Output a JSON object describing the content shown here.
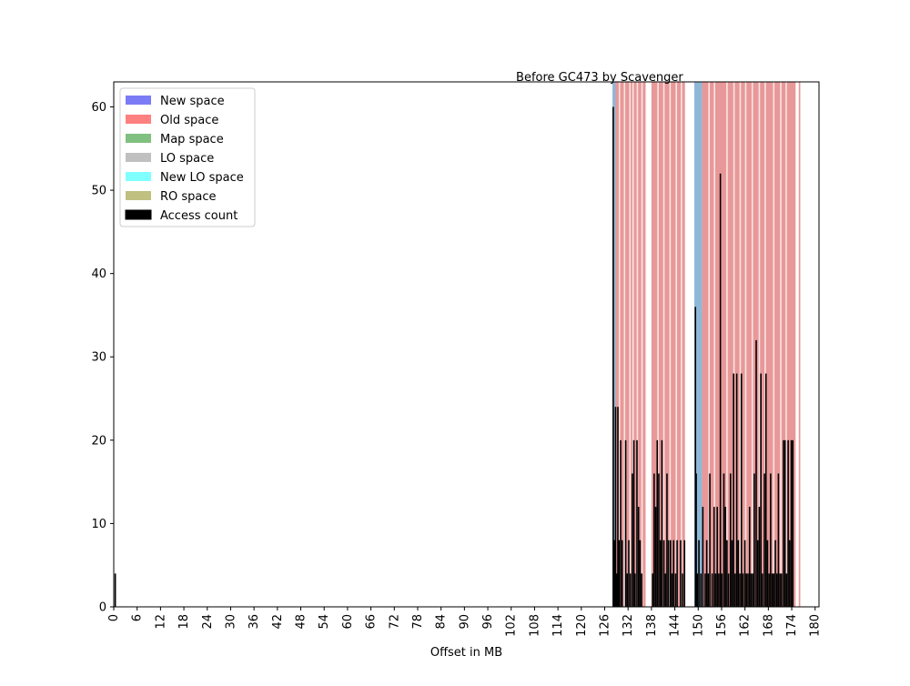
{
  "chart_data": {
    "type": "bar",
    "title": "Before GC473 by Scavenger",
    "xlabel": "Offset in MB",
    "ylabel": "",
    "xlim": [
      0,
      181
    ],
    "ylim": [
      0,
      63
    ],
    "xticks": [
      0,
      6,
      12,
      18,
      24,
      30,
      36,
      42,
      48,
      54,
      60,
      66,
      72,
      78,
      84,
      90,
      96,
      102,
      108,
      114,
      120,
      126,
      132,
      138,
      144,
      150,
      156,
      162,
      168,
      174,
      180
    ],
    "yticks": [
      0,
      10,
      20,
      30,
      40,
      50,
      60
    ],
    "grid": false,
    "legend_position": "top-left",
    "legend": [
      {
        "label": "New space",
        "color": "#7b7bf5"
      },
      {
        "label": "Old space",
        "color": "#ff8080"
      },
      {
        "label": "Map space",
        "color": "#80c080"
      },
      {
        "label": "LO space",
        "color": "#c0c0c0"
      },
      {
        "label": "New LO space",
        "color": "#80ffff"
      },
      {
        "label": "RO space",
        "color": "#c0c080"
      },
      {
        "label": "Access count",
        "color": "#000000"
      }
    ],
    "space_regions": [
      {
        "space": "New space",
        "start": 128.0,
        "end": 128.8,
        "color": "#8fb8d8"
      },
      {
        "space": "Old space",
        "start": 128.8,
        "end": 136.5,
        "color": "#e89898"
      },
      {
        "space": "Old space",
        "start": 138.0,
        "end": 146.6,
        "color": "#e89898"
      },
      {
        "space": "New space",
        "start": 149.0,
        "end": 151.0,
        "color": "#8fb8d8"
      },
      {
        "space": "Old space",
        "start": 151.0,
        "end": 175.0,
        "color": "#e89898"
      },
      {
        "space": "Old space",
        "start": 175.8,
        "end": 176.2,
        "color": "#e89898"
      }
    ],
    "region_gaps": [
      129.6,
      130.9,
      132.3,
      133.1,
      134.2,
      135.4,
      139.5,
      141.0,
      142.6,
      144.2,
      145.5,
      152.6,
      154.0,
      157.2,
      159.0,
      160.6,
      162.0,
      163.7,
      165.5,
      167.0,
      169.2,
      171.0,
      172.4
    ],
    "series": [
      {
        "name": "Access count",
        "x": [
          0.2,
          128.0,
          128.3,
          128.6,
          128.9,
          129.2,
          129.5,
          129.9,
          130.3,
          131.2,
          131.6,
          132.0,
          132.4,
          132.9,
          133.3,
          133.6,
          134.1,
          134.5,
          134.9,
          135.3,
          138.1,
          138.5,
          138.9,
          139.3,
          139.7,
          140.1,
          140.5,
          141.0,
          141.4,
          141.8,
          142.2,
          142.7,
          143.1,
          143.5,
          144.0,
          144.4,
          145.3,
          145.8,
          146.3,
          149.1,
          149.3,
          149.6,
          150.0,
          150.5,
          151.0,
          151.6,
          152.0,
          152.4,
          152.8,
          153.4,
          153.9,
          154.3,
          154.7,
          155.1,
          155.5,
          155.9,
          156.4,
          156.8,
          157.2,
          157.6,
          158.1,
          158.5,
          158.9,
          159.3,
          159.7,
          160.1,
          160.5,
          160.9,
          161.3,
          161.8,
          162.2,
          162.6,
          163.0,
          163.4,
          163.8,
          164.2,
          164.7,
          165.1,
          165.5,
          165.9,
          166.3,
          166.8,
          167.2,
          167.6,
          168.0,
          168.4,
          168.8,
          169.2,
          169.6,
          170.0,
          170.4,
          170.8,
          171.2,
          171.7,
          172.1,
          172.5,
          172.9,
          173.3,
          173.7,
          174.1
        ],
        "values": [
          4,
          60,
          8,
          24,
          4,
          24,
          8,
          20,
          8,
          20,
          4,
          8,
          4,
          16,
          20,
          4,
          20,
          12,
          8,
          4,
          4,
          16,
          12,
          20,
          16,
          8,
          20,
          8,
          4,
          16,
          8,
          8,
          4,
          8,
          4,
          8,
          8,
          4,
          8,
          36,
          16,
          4,
          8,
          4,
          12,
          4,
          8,
          4,
          16,
          4,
          12,
          4,
          12,
          4,
          52,
          4,
          16,
          12,
          8,
          4,
          16,
          8,
          28,
          4,
          28,
          8,
          4,
          28,
          4,
          8,
          4,
          4,
          12,
          4,
          4,
          16,
          32,
          8,
          12,
          28,
          4,
          16,
          28,
          8,
          4,
          16,
          4,
          4,
          8,
          4,
          16,
          4,
          4,
          20,
          20,
          4,
          20,
          8,
          20,
          20
        ],
        "color": "#000000"
      }
    ]
  }
}
